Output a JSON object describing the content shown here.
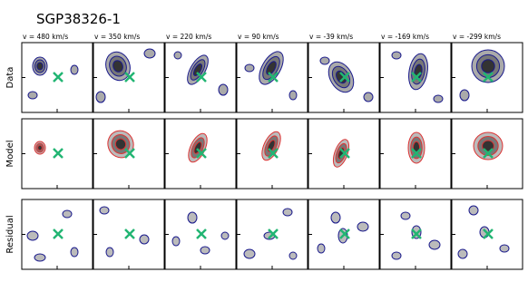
{
  "title": "SGP38326-1",
  "columns": [
    "v = 480 km/s",
    "v = 350 km/s",
    "v = 220 km/s",
    "v = 90 km/s",
    "v = -39 km/s",
    "v = -169 km/s",
    "v = -299 km/s"
  ],
  "rows": [
    "Data",
    "Model",
    "Residual"
  ]
}
